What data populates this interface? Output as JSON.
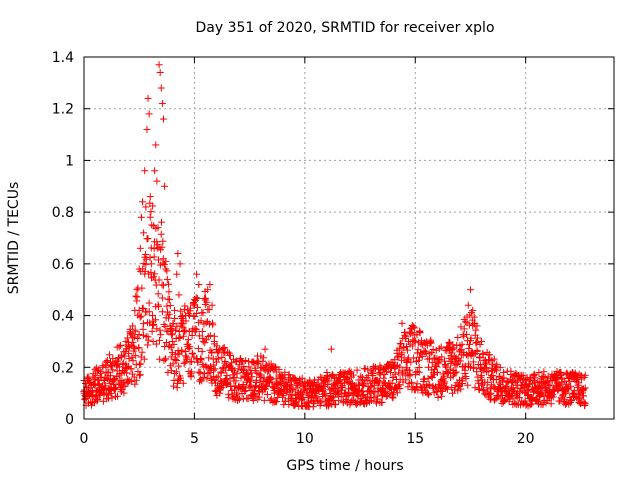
{
  "chart_data": {
    "type": "scatter",
    "title": "Day 351 of 2020, SRMTID for receiver xplo",
    "xlabel": "GPS time / hours",
    "ylabel": "SRMTID / TECUs",
    "xlim": [
      0,
      24
    ],
    "ylim": [
      0,
      1.4
    ],
    "xticks": [
      0,
      5,
      10,
      15,
      20
    ],
    "xtick_labels": [
      "0",
      "5",
      "10",
      "15",
      "20"
    ],
    "yticks": [
      0,
      0.2,
      0.4,
      0.6,
      0.8,
      1,
      1.2,
      1.4
    ],
    "ytick_labels": [
      "0",
      "0.2",
      "0.4",
      "0.6",
      "0.8",
      "1",
      "1.2",
      "1.4"
    ],
    "grid": true,
    "marker": "+",
    "series": [
      {
        "name": "SRMTID",
        "color": "#ff0000",
        "points": [
          [
            0.0,
            0.1
          ],
          [
            0.1,
            0.08
          ],
          [
            0.2,
            0.12
          ],
          [
            0.3,
            0.14
          ],
          [
            0.4,
            0.09
          ],
          [
            0.5,
            0.13
          ],
          [
            0.6,
            0.07
          ],
          [
            0.7,
            0.11
          ],
          [
            0.8,
            0.16
          ],
          [
            0.9,
            0.15
          ],
          [
            1.0,
            0.2
          ],
          [
            1.1,
            0.18
          ],
          [
            1.2,
            0.22
          ],
          [
            1.3,
            0.19
          ],
          [
            1.4,
            0.12
          ],
          [
            1.5,
            0.21
          ],
          [
            1.6,
            0.17
          ],
          [
            1.7,
            0.24
          ],
          [
            1.8,
            0.26
          ],
          [
            1.9,
            0.3
          ],
          [
            2.0,
            0.28
          ],
          [
            2.1,
            0.33
          ],
          [
            2.2,
            0.36
          ],
          [
            2.3,
            0.42
          ],
          [
            2.4,
            0.5
          ],
          [
            2.5,
            0.58
          ],
          [
            2.55,
            0.66
          ],
          [
            2.6,
            0.78
          ],
          [
            2.65,
            0.84
          ],
          [
            2.7,
            0.72
          ],
          [
            2.75,
            0.96
          ],
          [
            2.8,
            0.82
          ],
          [
            2.85,
            1.12
          ],
          [
            2.9,
            1.24
          ],
          [
            2.95,
            1.18
          ],
          [
            3.0,
            0.86
          ],
          [
            3.05,
            0.6
          ],
          [
            3.1,
            0.4
          ],
          [
            3.15,
            0.55
          ],
          [
            3.2,
            0.96
          ],
          [
            3.25,
            1.06
          ],
          [
            3.3,
            0.92
          ],
          [
            3.35,
            0.74
          ],
          [
            3.4,
            1.37
          ],
          [
            3.45,
            1.34
          ],
          [
            3.5,
            1.28
          ],
          [
            3.55,
            1.22
          ],
          [
            3.6,
            1.16
          ],
          [
            3.65,
            0.9
          ],
          [
            3.7,
            0.58
          ],
          [
            3.75,
            0.34
          ],
          [
            3.8,
            0.18
          ],
          [
            3.85,
            0.28
          ],
          [
            3.9,
            0.36
          ],
          [
            3.95,
            0.24
          ],
          [
            4.0,
            0.3
          ],
          [
            4.1,
            0.42
          ],
          [
            4.2,
            0.56
          ],
          [
            4.25,
            0.64
          ],
          [
            4.3,
            0.48
          ],
          [
            4.35,
            0.6
          ],
          [
            4.4,
            0.36
          ],
          [
            4.5,
            0.32
          ],
          [
            4.6,
            0.4
          ],
          [
            4.7,
            0.28
          ],
          [
            4.8,
            0.22
          ],
          [
            4.9,
            0.34
          ],
          [
            5.0,
            0.44
          ],
          [
            5.1,
            0.56
          ],
          [
            5.2,
            0.52
          ],
          [
            5.3,
            0.38
          ],
          [
            5.4,
            0.3
          ],
          [
            5.5,
            0.46
          ],
          [
            5.6,
            0.5
          ],
          [
            5.7,
            0.52
          ],
          [
            5.8,
            0.44
          ],
          [
            5.9,
            0.3
          ],
          [
            6.0,
            0.22
          ],
          [
            6.2,
            0.18
          ],
          [
            6.4,
            0.14
          ],
          [
            6.6,
            0.2
          ],
          [
            6.8,
            0.16
          ],
          [
            7.0,
            0.12
          ],
          [
            7.2,
            0.18
          ],
          [
            7.4,
            0.15
          ],
          [
            7.6,
            0.22
          ],
          [
            7.8,
            0.13
          ],
          [
            8.0,
            0.17
          ],
          [
            8.2,
            0.27
          ],
          [
            8.4,
            0.14
          ],
          [
            8.6,
            0.19
          ],
          [
            8.8,
            0.11
          ],
          [
            9.0,
            0.16
          ],
          [
            9.2,
            0.13
          ],
          [
            9.4,
            0.08
          ],
          [
            9.6,
            0.12
          ],
          [
            9.8,
            0.1
          ],
          [
            10.0,
            0.14
          ],
          [
            10.2,
            0.09
          ],
          [
            10.4,
            0.13
          ],
          [
            10.6,
            0.07
          ],
          [
            10.8,
            0.11
          ],
          [
            11.0,
            0.18
          ],
          [
            11.2,
            0.27
          ],
          [
            11.4,
            0.12
          ],
          [
            11.6,
            0.15
          ],
          [
            11.8,
            0.1
          ],
          [
            12.0,
            0.14
          ],
          [
            12.2,
            0.17
          ],
          [
            12.4,
            0.11
          ],
          [
            12.6,
            0.13
          ],
          [
            12.8,
            0.16
          ],
          [
            13.0,
            0.1
          ],
          [
            13.2,
            0.15
          ],
          [
            13.4,
            0.18
          ],
          [
            13.6,
            0.14
          ],
          [
            13.8,
            0.2
          ],
          [
            14.0,
            0.16
          ],
          [
            14.2,
            0.24
          ],
          [
            14.4,
            0.37
          ],
          [
            14.6,
            0.28
          ],
          [
            14.8,
            0.22
          ],
          [
            15.0,
            0.3
          ],
          [
            15.2,
            0.34
          ],
          [
            15.4,
            0.26
          ],
          [
            15.6,
            0.2
          ],
          [
            15.8,
            0.12
          ],
          [
            16.0,
            0.18
          ],
          [
            16.2,
            0.24
          ],
          [
            16.4,
            0.2
          ],
          [
            16.6,
            0.16
          ],
          [
            16.8,
            0.22
          ],
          [
            17.0,
            0.26
          ],
          [
            17.2,
            0.32
          ],
          [
            17.4,
            0.44
          ],
          [
            17.5,
            0.5
          ],
          [
            17.6,
            0.42
          ],
          [
            17.8,
            0.36
          ],
          [
            18.0,
            0.3
          ],
          [
            18.2,
            0.22
          ],
          [
            18.4,
            0.16
          ],
          [
            18.6,
            0.12
          ],
          [
            18.8,
            0.14
          ],
          [
            19.0,
            0.18
          ],
          [
            19.2,
            0.11
          ],
          [
            19.4,
            0.15
          ],
          [
            19.6,
            0.09
          ],
          [
            19.8,
            0.13
          ],
          [
            20.0,
            0.1
          ],
          [
            20.2,
            0.16
          ],
          [
            20.4,
            0.12
          ],
          [
            20.6,
            0.18
          ],
          [
            20.8,
            0.14
          ],
          [
            21.0,
            0.11
          ],
          [
            21.2,
            0.15
          ],
          [
            21.4,
            0.13
          ],
          [
            21.6,
            0.17
          ],
          [
            21.8,
            0.12
          ],
          [
            22.0,
            0.16
          ],
          [
            22.2,
            0.1
          ],
          [
            22.4,
            0.14
          ],
          [
            22.6,
            0.09
          ],
          [
            22.7,
            0.12
          ]
        ]
      }
    ],
    "envelope": {
      "description": "dense background scatter; approximate typical value over time (hours, TECU)",
      "x": [
        0,
        1,
        2,
        2.5,
        3,
        3.5,
        4,
        4.5,
        5,
        5.5,
        6,
        7,
        8,
        9,
        10,
        11,
        12,
        13,
        14,
        14.5,
        15,
        16,
        17,
        17.5,
        18,
        19,
        20,
        21,
        22,
        22.7
      ],
      "y": [
        0.1,
        0.15,
        0.22,
        0.35,
        0.55,
        0.5,
        0.25,
        0.28,
        0.3,
        0.32,
        0.2,
        0.15,
        0.16,
        0.12,
        0.1,
        0.11,
        0.12,
        0.13,
        0.15,
        0.22,
        0.24,
        0.18,
        0.22,
        0.3,
        0.18,
        0.13,
        0.11,
        0.12,
        0.12,
        0.11
      ]
    }
  },
  "colors": {
    "marker": "#ff0000",
    "grid": "#a0a0a0",
    "axis": "#000000"
  }
}
